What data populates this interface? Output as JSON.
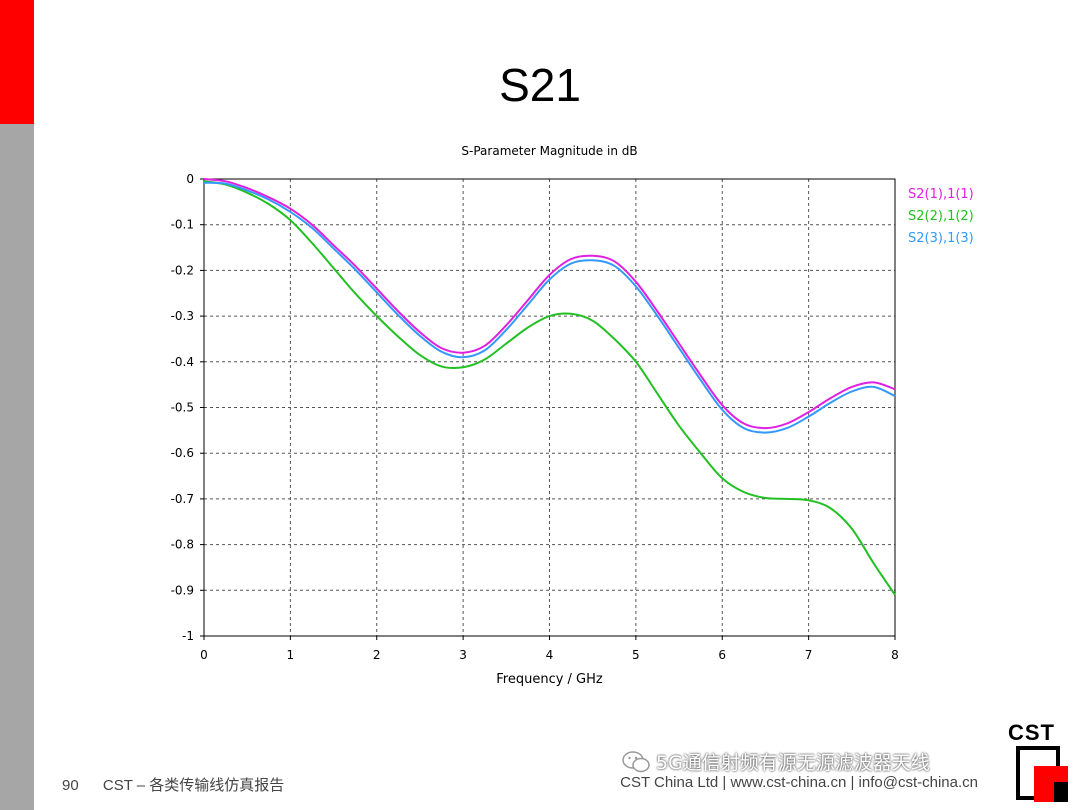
{
  "slide": {
    "title": "S21",
    "page_number": "90",
    "footer_left": "CST – 各类传输线仿真报告",
    "footer_right": "CST China Ltd | www.cst-china.cn | info@cst-china.cn",
    "watermark": "5G通信射频有源无源滤波器天线",
    "logo_text": "CST",
    "accent_color": "#ff0000",
    "sidebar_color": "#a6a6a6"
  },
  "chart_data": {
    "type": "line",
    "title": "S-Parameter Magnitude in dB",
    "xlabel": "Frequency / GHz",
    "ylabel": "",
    "xlim": [
      0,
      8
    ],
    "ylim": [
      -1,
      0
    ],
    "xticks": [
      "0",
      "1",
      "2",
      "3",
      "4",
      "5",
      "6",
      "7",
      "8"
    ],
    "yticks": [
      "0",
      "-0.1",
      "-0.2",
      "-0.3",
      "-0.4",
      "-0.5",
      "-0.6",
      "-0.7",
      "-0.8",
      "-0.9",
      "-1"
    ],
    "grid": true,
    "legend_position": "top-right",
    "series": [
      {
        "name": "S2(1),1(1)",
        "color": "#e020e0",
        "x": [
          0,
          0.25,
          0.5,
          0.75,
          1.0,
          1.25,
          1.5,
          1.75,
          2.0,
          2.25,
          2.5,
          2.75,
          3.0,
          3.25,
          3.5,
          3.75,
          4.0,
          4.25,
          4.5,
          4.75,
          5.0,
          5.25,
          5.5,
          5.75,
          6.0,
          6.25,
          6.5,
          6.75,
          7.0,
          7.25,
          7.5,
          7.75,
          8.0
        ],
        "y": [
          0,
          -0.005,
          -0.02,
          -0.04,
          -0.065,
          -0.1,
          -0.145,
          -0.19,
          -0.24,
          -0.29,
          -0.335,
          -0.37,
          -0.38,
          -0.365,
          -0.32,
          -0.265,
          -0.21,
          -0.175,
          -0.168,
          -0.18,
          -0.225,
          -0.29,
          -0.36,
          -0.43,
          -0.495,
          -0.535,
          -0.545,
          -0.535,
          -0.51,
          -0.48,
          -0.455,
          -0.445,
          -0.46
        ]
      },
      {
        "name": "S2(2),1(2)",
        "color": "#22c022",
        "x": [
          0,
          0.25,
          0.5,
          0.75,
          1.0,
          1.25,
          1.5,
          1.75,
          2.0,
          2.25,
          2.5,
          2.75,
          3.0,
          3.25,
          3.5,
          3.75,
          4.0,
          4.25,
          4.5,
          4.75,
          5.0,
          5.25,
          5.5,
          5.75,
          6.0,
          6.25,
          6.5,
          6.75,
          7.0,
          7.25,
          7.5,
          7.75,
          8.0
        ],
        "y": [
          -0.005,
          -0.012,
          -0.03,
          -0.055,
          -0.09,
          -0.14,
          -0.195,
          -0.25,
          -0.3,
          -0.345,
          -0.385,
          -0.41,
          -0.412,
          -0.395,
          -0.36,
          -0.325,
          -0.3,
          -0.295,
          -0.31,
          -0.35,
          -0.4,
          -0.47,
          -0.54,
          -0.6,
          -0.655,
          -0.685,
          -0.698,
          -0.7,
          -0.703,
          -0.72,
          -0.765,
          -0.84,
          -0.91
        ]
      },
      {
        "name": "S2(3),1(3)",
        "color": "#3399ff",
        "x": [
          0,
          0.25,
          0.5,
          0.75,
          1.0,
          1.25,
          1.5,
          1.75,
          2.0,
          2.25,
          2.5,
          2.75,
          3.0,
          3.25,
          3.5,
          3.75,
          4.0,
          4.25,
          4.5,
          4.75,
          5.0,
          5.25,
          5.5,
          5.75,
          6.0,
          6.25,
          6.5,
          6.75,
          7.0,
          7.25,
          7.5,
          7.75,
          8.0
        ],
        "y": [
          -0.008,
          -0.01,
          -0.025,
          -0.045,
          -0.072,
          -0.107,
          -0.152,
          -0.198,
          -0.248,
          -0.298,
          -0.343,
          -0.378,
          -0.39,
          -0.375,
          -0.33,
          -0.275,
          -0.22,
          -0.185,
          -0.178,
          -0.19,
          -0.235,
          -0.3,
          -0.37,
          -0.44,
          -0.505,
          -0.545,
          -0.555,
          -0.545,
          -0.52,
          -0.49,
          -0.465,
          -0.455,
          -0.475
        ]
      }
    ]
  }
}
